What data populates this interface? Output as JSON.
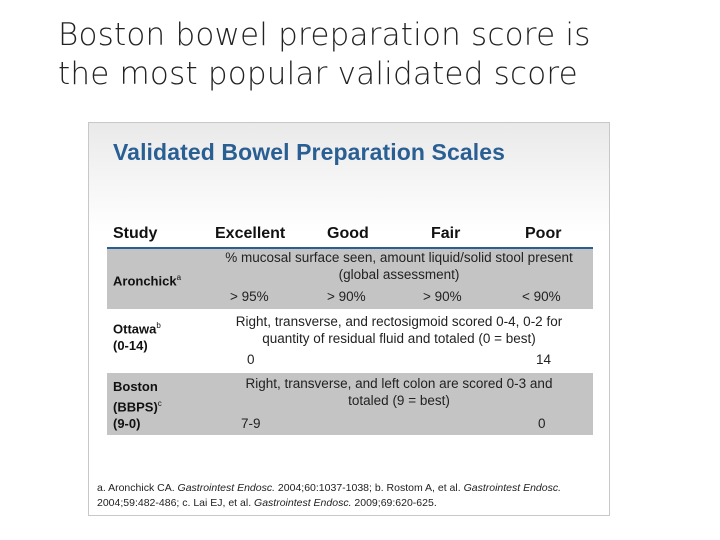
{
  "slide": {
    "title_line1": "Boston bowel preparation score is",
    "title_line2": "the most popular validated score"
  },
  "figure": {
    "heading": "Validated Bowel Preparation Scales",
    "columns": [
      "Study",
      "Excellent",
      "Good",
      "Fair",
      "Poor"
    ],
    "rows": [
      {
        "study_name": "Aronchick",
        "study_sup": "a",
        "description_line1": "% mucosal surface seen, amount liquid/solid stool present",
        "description_line2": "(global assessment)",
        "values": [
          "> 95%",
          "> 90%",
          "> 90%",
          "< 90%"
        ]
      },
      {
        "study_name": "Ottawa",
        "study_sup": "b",
        "study_range": "(0-14)",
        "description_line1": "Right, transverse, and rectosigmoid scored 0-4, 0-2 for",
        "description_line2": "quantity of residual fluid and totaled (0 = best)",
        "value_excellent": "0",
        "value_poor": "14"
      },
      {
        "study_name": "Boston",
        "study_abbrev": "(BBPS)",
        "study_sup": "c",
        "study_range": "(9-0)",
        "description_line1": "Right, transverse, and left colon are scored  0-3 and",
        "description_line2": "totaled (9 = best)",
        "value_excellent": "7-9",
        "value_poor": "0"
      }
    ],
    "footnote": {
      "ref_a": "a. Aronchick CA. ",
      "ref_a_journal": "Gastrointest Endosc.",
      "ref_a_rest": " 2004;60:1037-1038; b. Rostom  A, et al. ",
      "ref_b_journal": "Gastrointest Endosc.",
      "ref_b_rest": " 2004;59:482-486; c. Lai EJ, et al. ",
      "ref_c_journal": "Gastrointest Endosc.",
      "ref_c_rest": " 2009;69:620-625."
    }
  }
}
